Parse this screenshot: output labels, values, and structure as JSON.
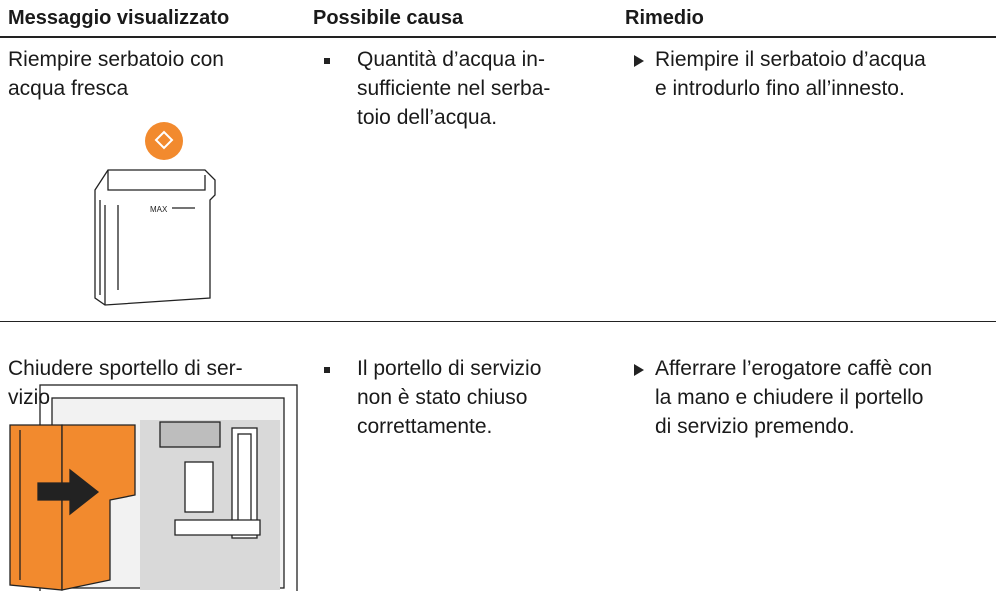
{
  "table": {
    "header": [
      "Messaggio visualizzato",
      "Possibile causa",
      "Rimedio"
    ],
    "rows": [
      {
        "message": [
          "Riempire serbatoio con",
          "acqua fresca"
        ],
        "cause": [
          "Quantità d’acqua in-",
          "sufficiente nel serba-",
          "toio dell’acqua."
        ],
        "remedy": [
          "Riempire il serbatoio d’acqua",
          "e introdurlo fino all’innesto."
        ],
        "illustration_label": "MAX"
      },
      {
        "message": [
          "Chiudere sportello di ser-",
          "vizio"
        ],
        "cause": [
          "Il portello di servizio",
          "non è stato chiuso",
          "correttamente."
        ],
        "remedy": [
          "Afferrare l’erogatore caffè con",
          "la mano e chiudere il portello",
          "di servizio premendo."
        ]
      }
    ]
  }
}
